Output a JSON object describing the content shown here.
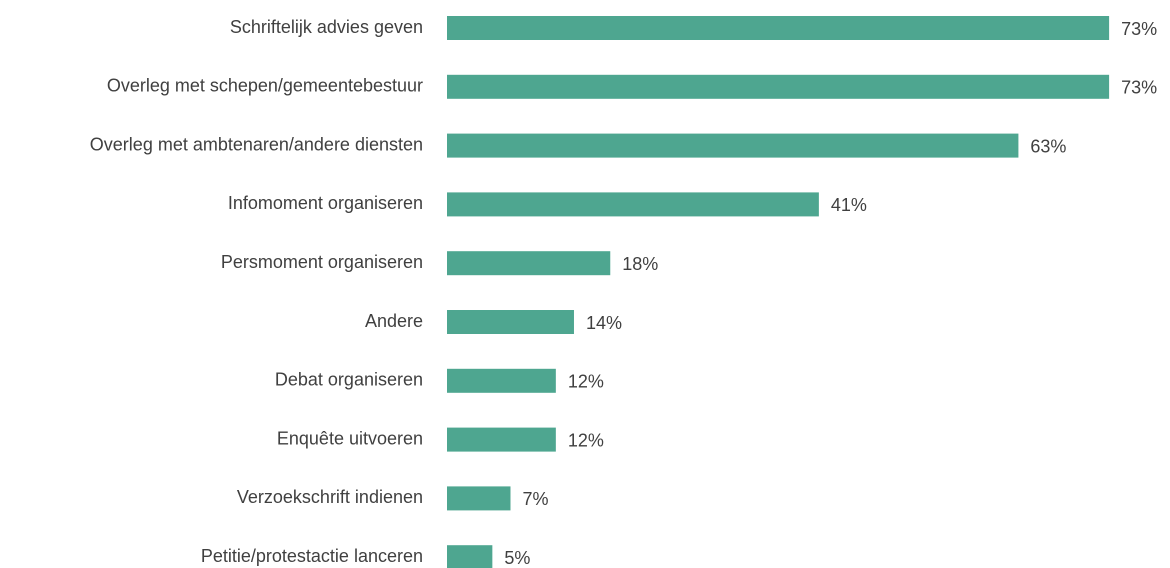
{
  "chart_data": {
    "type": "hbar",
    "categories": [
      "Schriftelijk advies geven",
      "Overleg met schepen/gemeentebestuur",
      "Overleg met ambtenaren/andere diensten",
      "Infomoment organiseren",
      "Persmoment organiseren",
      "Andere",
      "Debat organiseren",
      "Enquête uitvoeren",
      "Verzoekschrift indienen",
      "Petitie/protestactie lanceren"
    ],
    "values": [
      73,
      73,
      63,
      41,
      18,
      14,
      12,
      12,
      7,
      5
    ],
    "value_labels": [
      "73%",
      "73%",
      "63%",
      "41%",
      "18%",
      "14%",
      "12%",
      "12%",
      "7%",
      "5%"
    ],
    "color": "#4ea690"
  }
}
